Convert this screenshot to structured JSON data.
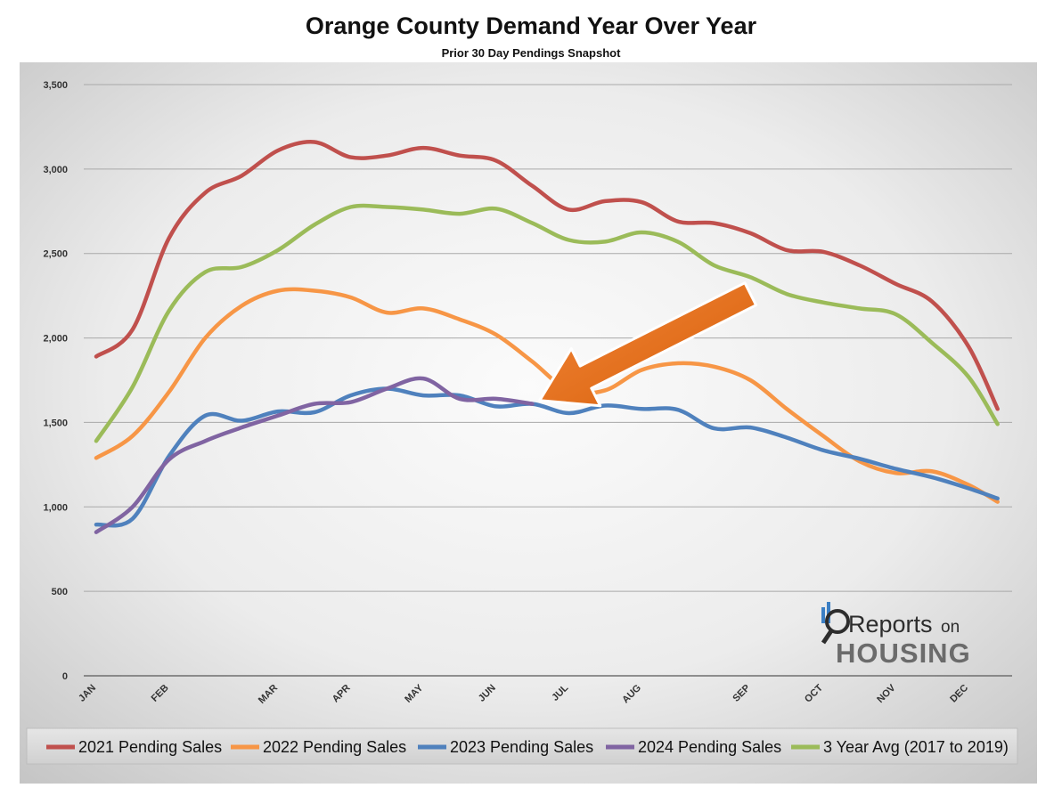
{
  "chart_data": {
    "type": "line",
    "title": "Orange County Demand Year Over Year",
    "subtitle": "Prior 30 Day Pendings Snapshot",
    "xlabel": "",
    "ylabel": "",
    "ylim": [
      0,
      3500
    ],
    "yticks": [
      0,
      500,
      1000,
      1500,
      2000,
      2500,
      3000,
      3500
    ],
    "ytick_labels": [
      "0",
      "500",
      "1,000",
      "1,500",
      "2,000",
      "2,500",
      "3,000",
      "3,500"
    ],
    "xlim": [
      0,
      12.6
    ],
    "months": [
      {
        "label": "JAN",
        "x": 0
      },
      {
        "label": "FEB",
        "x": 1
      },
      {
        "label": "MAR",
        "x": 2.5
      },
      {
        "label": "APR",
        "x": 3.5
      },
      {
        "label": "MAY",
        "x": 4.5
      },
      {
        "label": "JUN",
        "x": 5.5
      },
      {
        "label": "JUL",
        "x": 6.5
      },
      {
        "label": "AUG",
        "x": 7.5
      },
      {
        "label": "SEP",
        "x": 9
      },
      {
        "label": "OCT",
        "x": 10
      },
      {
        "label": "NOV",
        "x": 11
      },
      {
        "label": "DEC",
        "x": 12
      }
    ],
    "grid": true,
    "legend_position": "bottom",
    "series": [
      {
        "name": "2021 Pending Sales",
        "color": "#c0504d",
        "points": [
          [
            0,
            1890
          ],
          [
            0.5,
            2050
          ],
          [
            1,
            2590
          ],
          [
            1.5,
            2860
          ],
          [
            2,
            2960
          ],
          [
            2.5,
            3110
          ],
          [
            3,
            3160
          ],
          [
            3.5,
            3070
          ],
          [
            4,
            3080
          ],
          [
            4.5,
            3125
          ],
          [
            5,
            3080
          ],
          [
            5.5,
            3050
          ],
          [
            6,
            2900
          ],
          [
            6.5,
            2760
          ],
          [
            7,
            2810
          ],
          [
            7.5,
            2805
          ],
          [
            8,
            2690
          ],
          [
            8.5,
            2680
          ],
          [
            9,
            2620
          ],
          [
            9.5,
            2520
          ],
          [
            10,
            2510
          ],
          [
            10.5,
            2430
          ],
          [
            11,
            2320
          ],
          [
            11.5,
            2215
          ],
          [
            12,
            1950
          ],
          [
            12.4,
            1580
          ]
        ]
      },
      {
        "name": "2022 Pending Sales",
        "color": "#f79646",
        "points": [
          [
            0,
            1290
          ],
          [
            0.5,
            1420
          ],
          [
            1,
            1680
          ],
          [
            1.5,
            2000
          ],
          [
            2,
            2190
          ],
          [
            2.5,
            2280
          ],
          [
            3,
            2280
          ],
          [
            3.5,
            2240
          ],
          [
            4,
            2150
          ],
          [
            4.5,
            2175
          ],
          [
            5,
            2110
          ],
          [
            5.5,
            2020
          ],
          [
            6,
            1860
          ],
          [
            6.5,
            1690
          ],
          [
            7,
            1690
          ],
          [
            7.5,
            1810
          ],
          [
            8,
            1850
          ],
          [
            8.5,
            1830
          ],
          [
            9,
            1750
          ],
          [
            9.5,
            1580
          ],
          [
            10,
            1420
          ],
          [
            10.5,
            1270
          ],
          [
            11,
            1200
          ],
          [
            11.5,
            1210
          ],
          [
            12,
            1130
          ],
          [
            12.4,
            1030
          ]
        ]
      },
      {
        "name": "2023 Pending Sales",
        "color": "#4f81bd",
        "points": [
          [
            0,
            895
          ],
          [
            0.5,
            930
          ],
          [
            1,
            1300
          ],
          [
            1.5,
            1540
          ],
          [
            2,
            1510
          ],
          [
            2.5,
            1565
          ],
          [
            3,
            1560
          ],
          [
            3.5,
            1660
          ],
          [
            4,
            1700
          ],
          [
            4.5,
            1660
          ],
          [
            5,
            1660
          ],
          [
            5.5,
            1595
          ],
          [
            6,
            1610
          ],
          [
            6.5,
            1555
          ],
          [
            7,
            1600
          ],
          [
            7.5,
            1580
          ],
          [
            8,
            1575
          ],
          [
            8.5,
            1465
          ],
          [
            9,
            1470
          ],
          [
            9.5,
            1410
          ],
          [
            10,
            1335
          ],
          [
            10.5,
            1285
          ],
          [
            11,
            1225
          ],
          [
            11.5,
            1175
          ],
          [
            12,
            1110
          ],
          [
            12.4,
            1050
          ]
        ]
      },
      {
        "name": "2024 Pending Sales",
        "color": "#8064a2",
        "points": [
          [
            0,
            850
          ],
          [
            0.5,
            1000
          ],
          [
            1,
            1280
          ],
          [
            1.5,
            1390
          ],
          [
            2,
            1470
          ],
          [
            2.5,
            1540
          ],
          [
            3,
            1610
          ],
          [
            3.5,
            1620
          ],
          [
            4,
            1700
          ],
          [
            4.5,
            1760
          ],
          [
            5,
            1640
          ],
          [
            5.5,
            1640
          ],
          [
            6,
            1610
          ]
        ]
      },
      {
        "name": "3 Year Avg (2017 to 2019)",
        "color": "#9bbb59",
        "points": [
          [
            0,
            1390
          ],
          [
            0.5,
            1710
          ],
          [
            1,
            2160
          ],
          [
            1.5,
            2390
          ],
          [
            2,
            2420
          ],
          [
            2.5,
            2520
          ],
          [
            3,
            2670
          ],
          [
            3.5,
            2775
          ],
          [
            4,
            2775
          ],
          [
            4.5,
            2760
          ],
          [
            5,
            2735
          ],
          [
            5.5,
            2765
          ],
          [
            6,
            2680
          ],
          [
            6.5,
            2580
          ],
          [
            7,
            2570
          ],
          [
            7.5,
            2625
          ],
          [
            8,
            2570
          ],
          [
            8.5,
            2430
          ],
          [
            9,
            2360
          ],
          [
            9.5,
            2260
          ],
          [
            10,
            2210
          ],
          [
            10.5,
            2175
          ],
          [
            11,
            2140
          ],
          [
            11.5,
            1970
          ],
          [
            12,
            1770
          ],
          [
            12.4,
            1490
          ]
        ]
      }
    ],
    "annotation": {
      "type": "arrow",
      "color": "#e46c0a",
      "from": [
        9,
        2260
      ],
      "to": [
        6.1,
        1630
      ]
    }
  },
  "logo": {
    "part1": "Reports",
    "part2": "on",
    "part3": "HOUSING"
  }
}
